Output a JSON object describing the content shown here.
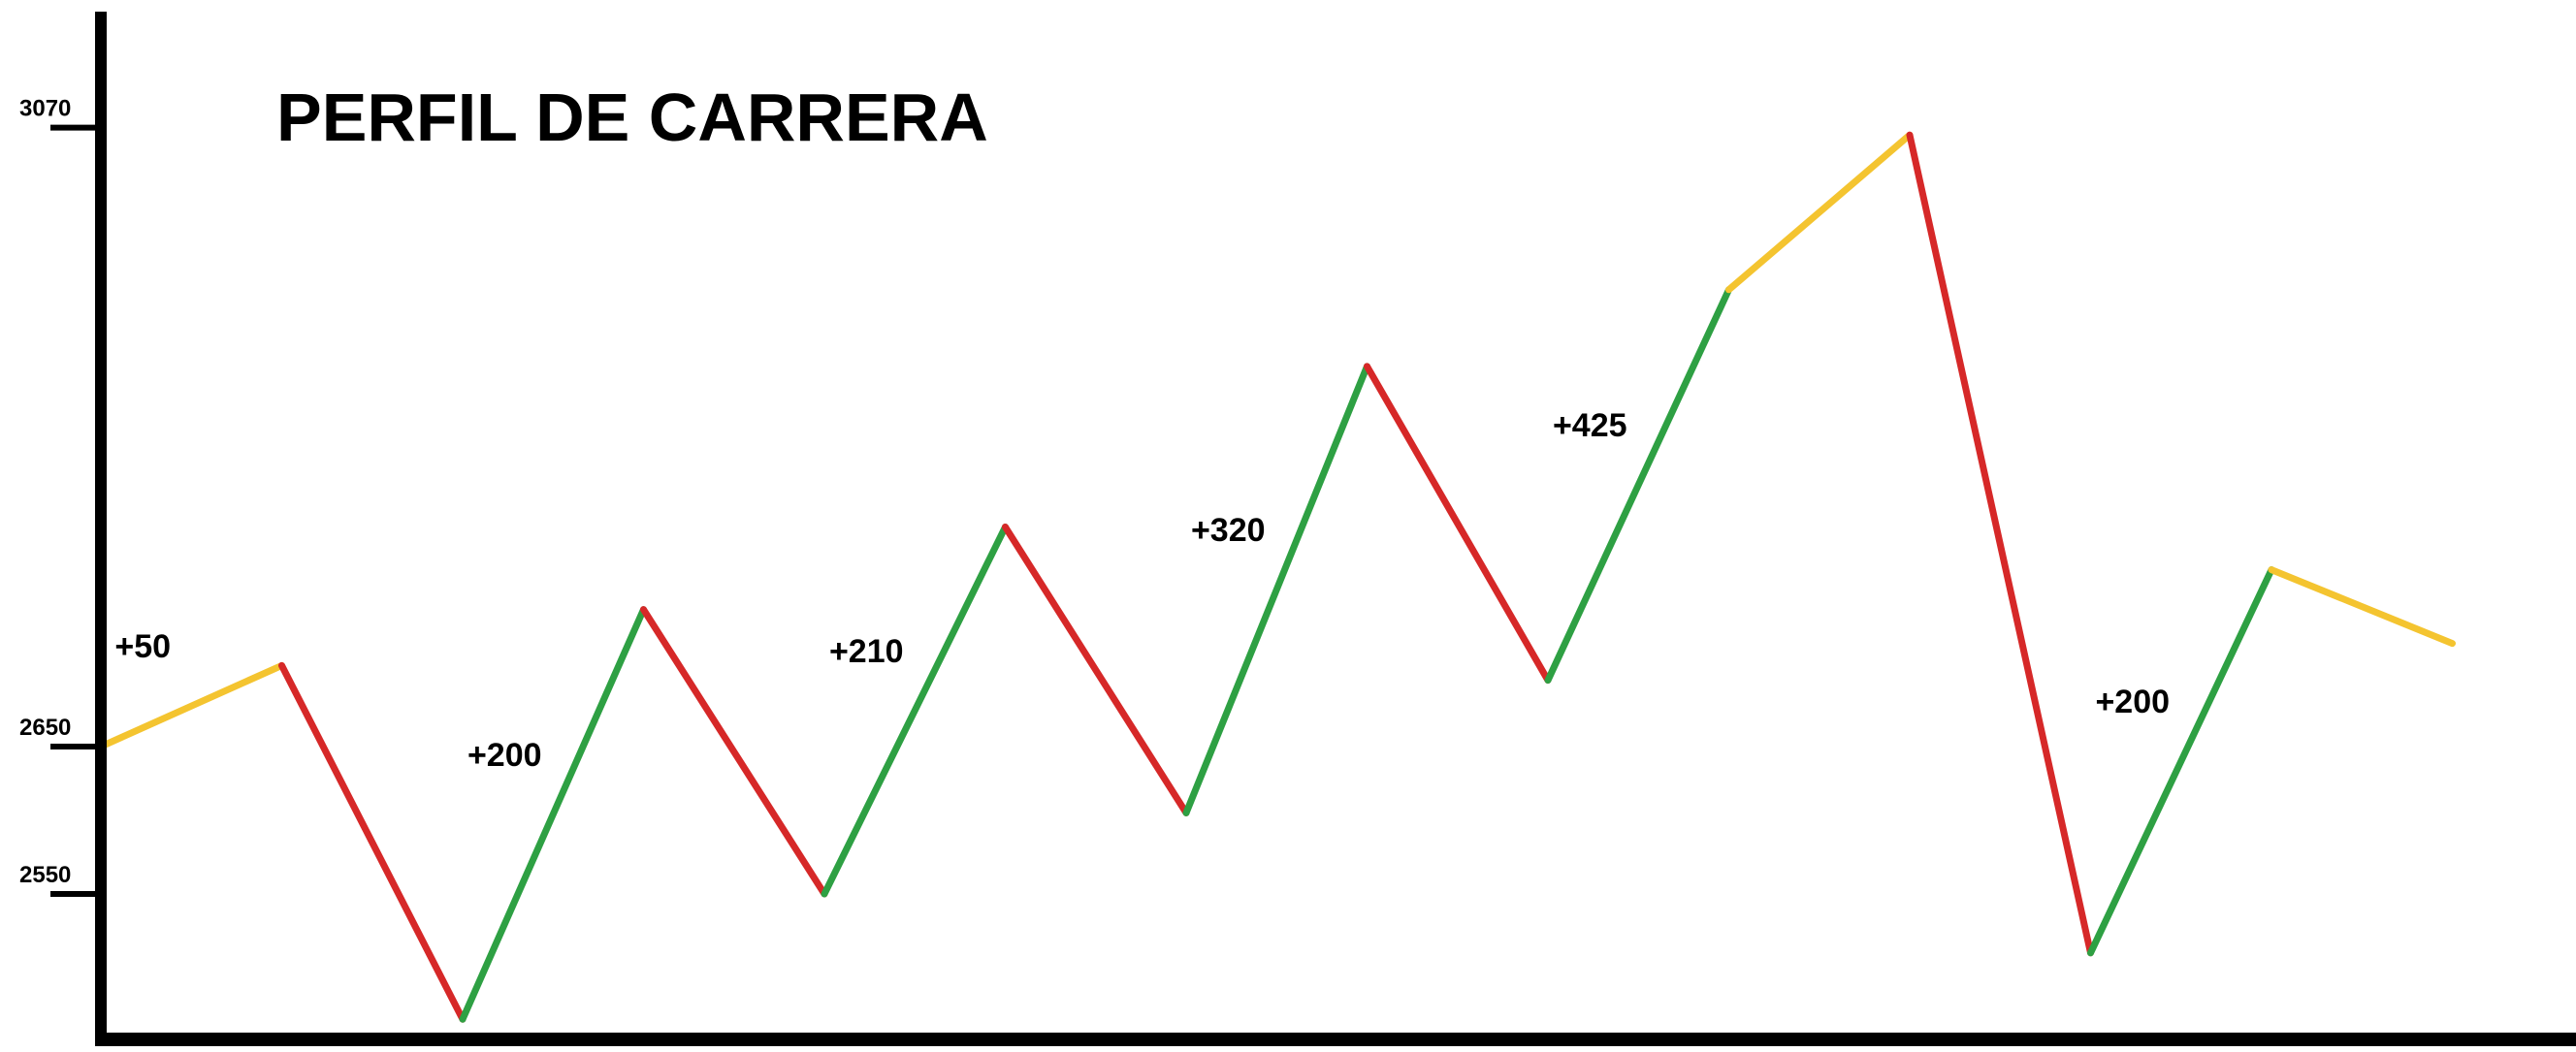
{
  "chart_data": {
    "type": "line",
    "title": "PERFIL DE CARRERA",
    "xlabel": "",
    "ylabel": "",
    "y_ticks": [
      {
        "value": 3070,
        "label": "3070"
      },
      {
        "value": 2650,
        "label": "2650"
      },
      {
        "value": 2550,
        "label": "2550"
      }
    ],
    "points": [
      {
        "x": 0,
        "y": 2650
      },
      {
        "x": 1,
        "y": 2705
      },
      {
        "x": 2,
        "y": 2465
      },
      {
        "x": 3,
        "y": 2743
      },
      {
        "x": 4,
        "y": 2550
      },
      {
        "x": 5,
        "y": 2799
      },
      {
        "x": 6,
        "y": 2605
      },
      {
        "x": 7,
        "y": 2908
      },
      {
        "x": 8,
        "y": 2695
      },
      {
        "x": 9,
        "y": 2960
      },
      {
        "x": 10,
        "y": 3065
      },
      {
        "x": 11,
        "y": 2510
      },
      {
        "x": 12,
        "y": 2770
      },
      {
        "x": 13,
        "y": 2720
      }
    ],
    "segment_colors": [
      "#f4c430",
      "#d62828",
      "#2ea043",
      "#d62828",
      "#2ea043",
      "#d62828",
      "#2ea043",
      "#d62828",
      "#2ea043",
      "#f4c430",
      "#d62828",
      "#2ea043",
      "#f4c430"
    ],
    "annotations": [
      {
        "text": "+50",
        "segment": 0
      },
      {
        "text": "+200",
        "segment": 2
      },
      {
        "text": "+210",
        "segment": 4
      },
      {
        "text": "+320",
        "segment": 6
      },
      {
        "text": "+425",
        "segment": 8
      },
      {
        "text": "+200",
        "segment": 11
      }
    ],
    "colors": {
      "axis": "#000000",
      "climb": "#2ea043",
      "descent": "#d62828",
      "flat": "#f4c430"
    }
  }
}
